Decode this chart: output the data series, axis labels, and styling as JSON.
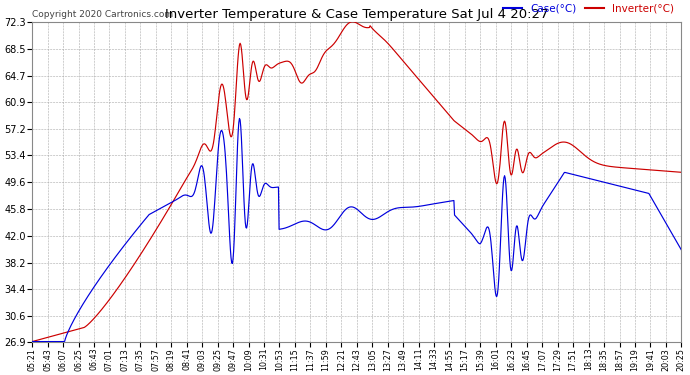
{
  "title": "Inverter Temperature & Case Temperature Sat Jul 4 20:27",
  "copyright": "Copyright 2020 Cartronics.com",
  "legend_case": "Case(°C)",
  "legend_inverter": "Inverter(°C)",
  "yticks": [
    26.9,
    30.6,
    34.4,
    38.2,
    42.0,
    45.8,
    49.6,
    53.4,
    57.2,
    60.9,
    64.7,
    68.5,
    72.3
  ],
  "ymin": 26.9,
  "ymax": 72.3,
  "bg_color": "#ffffff",
  "grid_color": "#aaaaaa",
  "case_color": "#0000dd",
  "inverter_color": "#cc0000",
  "title_color": "#000000",
  "copyright_color": "#444444",
  "xtick_labels": [
    "05:21",
    "05:43",
    "06:07",
    "06:25",
    "06:43",
    "07:01",
    "07:13",
    "07:35",
    "07:57",
    "08:19",
    "08:41",
    "09:03",
    "09:25",
    "09:47",
    "10:09",
    "10:31",
    "10:53",
    "11:15",
    "11:37",
    "11:59",
    "12:21",
    "12:43",
    "13:05",
    "13:27",
    "13:49",
    "14:11",
    "14:33",
    "14:55",
    "15:17",
    "15:39",
    "16:01",
    "16:23",
    "16:45",
    "17:07",
    "17:29",
    "17:51",
    "18:13",
    "18:35",
    "18:57",
    "19:19",
    "19:41",
    "20:03",
    "20:25"
  ]
}
